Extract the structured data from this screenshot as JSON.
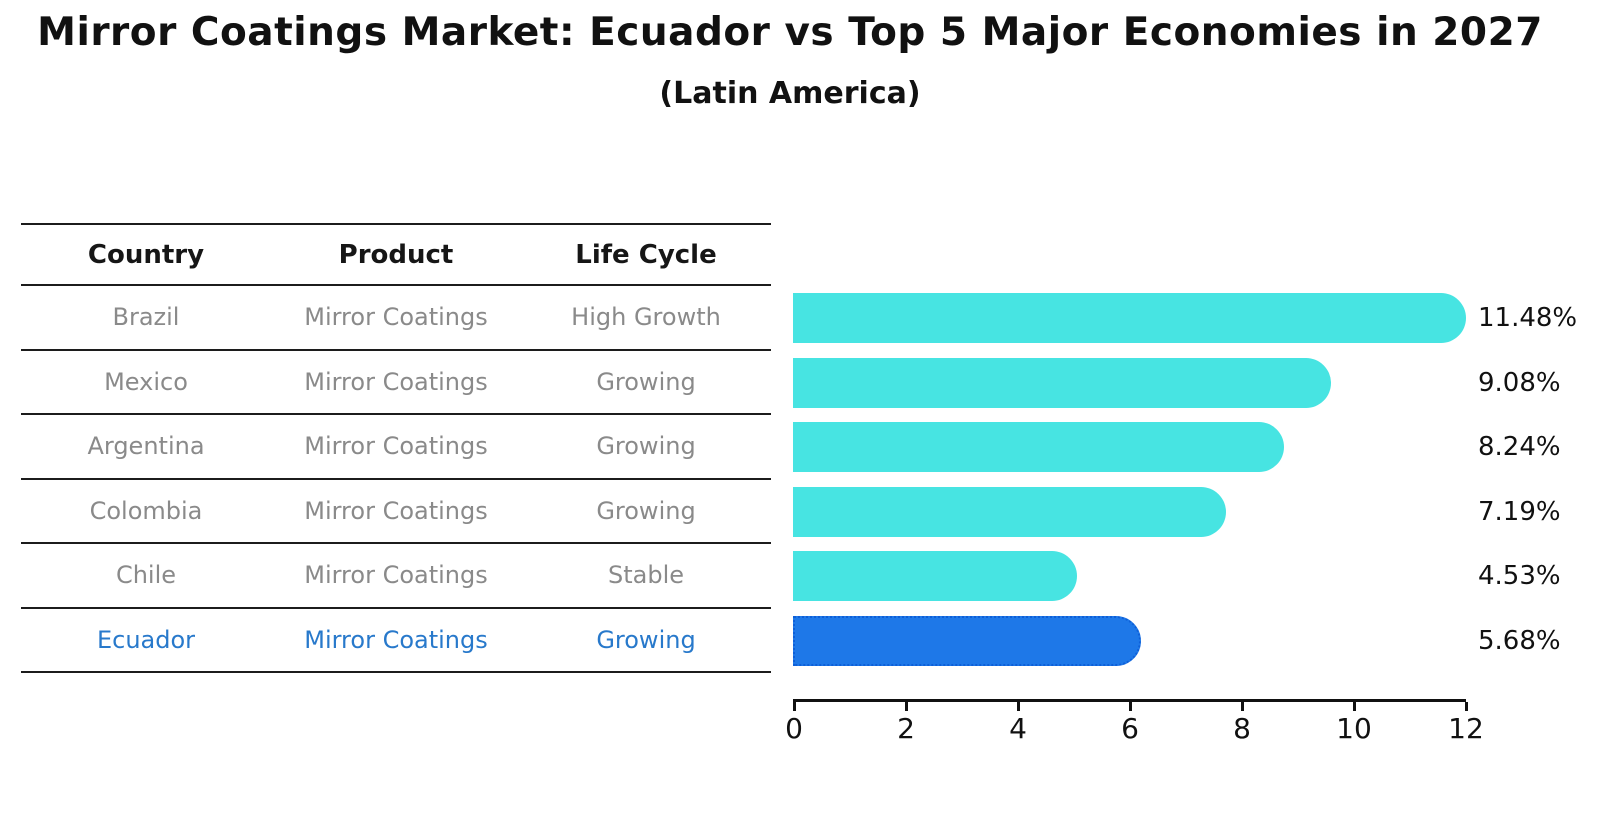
{
  "title": "Mirror Coatings Market: Ecuador vs Top 5 Major Economies in 2027",
  "subtitle": "(Latin America)",
  "table": {
    "headers": [
      "Country",
      "Product",
      "Life Cycle"
    ],
    "rows": [
      {
        "country": "Brazil",
        "product": "Mirror Coatings",
        "life_cycle": "High Growth",
        "highlight": false
      },
      {
        "country": "Mexico",
        "product": "Mirror Coatings",
        "life_cycle": "Growing",
        "highlight": false
      },
      {
        "country": "Argentina",
        "product": "Mirror Coatings",
        "life_cycle": "Growing",
        "highlight": false
      },
      {
        "country": "Colombia",
        "product": "Mirror Coatings",
        "life_cycle": "Growing",
        "highlight": false
      },
      {
        "country": "Chile",
        "product": "Mirror Coatings",
        "life_cycle": "Stable",
        "highlight": false
      },
      {
        "country": "Ecuador",
        "product": "Mirror Coatings",
        "life_cycle": "Growing",
        "highlight": true
      }
    ]
  },
  "chart_data": {
    "type": "bar",
    "orientation": "horizontal",
    "title": "Mirror Coatings Market: Ecuador vs Top 5 Major Economies in 2027",
    "subtitle": "(Latin America)",
    "categories": [
      "Brazil",
      "Mexico",
      "Argentina",
      "Colombia",
      "Chile",
      "Ecuador"
    ],
    "values": [
      11.48,
      9.08,
      8.24,
      7.19,
      4.53,
      5.68
    ],
    "value_labels": [
      "11.48%",
      "9.08%",
      "8.24%",
      "7.19%",
      "4.53%",
      "5.68%"
    ],
    "unit": "%",
    "xlabel": "",
    "ylabel": "",
    "xlim": [
      0,
      12
    ],
    "xticks": [
      0,
      2,
      4,
      6,
      8,
      10,
      12
    ],
    "grid": false,
    "highlight_index": 5,
    "highlight_category": "Ecuador"
  },
  "colors": {
    "bar_default": "#47E4E2",
    "bar_highlight": "#1E78E8",
    "bar_highlight_border": "#0E5FD8",
    "highlight_text": "#2879CB",
    "body_text": "#8a8a8a",
    "heading_text": "#161616",
    "axis": "#111111"
  }
}
